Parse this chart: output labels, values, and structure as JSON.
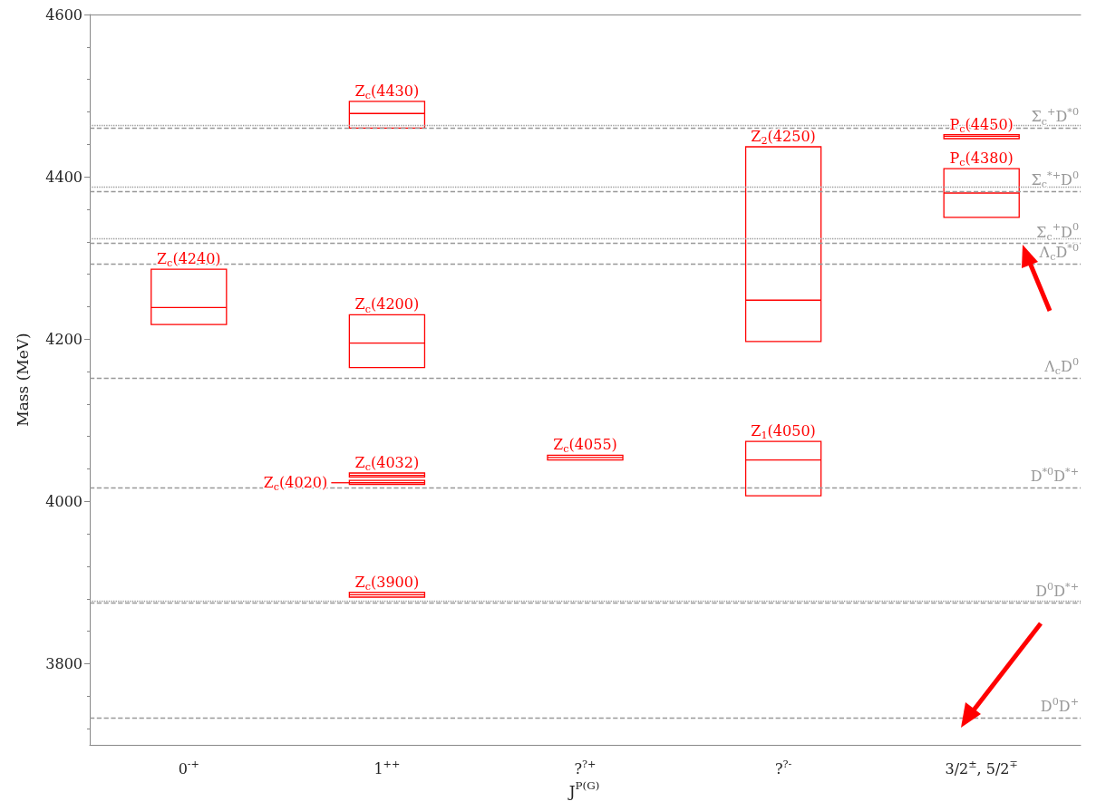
{
  "chart_data": {
    "type": "box",
    "xlabel": "J$^{P(G)}$",
    "ylabel": "Mass (MeV)",
    "categories": [
      "0$^{-+}$",
      "1$^{++}$",
      "?$^{?+}$",
      "?$^{?-}$",
      "3/2$^{±}$, 5/2$^{∓}$"
    ],
    "ylim": [
      3700,
      4600
    ],
    "yticks": [
      3800,
      4000,
      4200,
      4400,
      4600
    ],
    "grid": false,
    "series": [
      {
        "name": "Z$_{c}$(4240)",
        "color": "#ff0000",
        "boxes": [
          {
            "low": 4218,
            "q1": 4218,
            "median": 4239,
            "q3": 4286,
            "high": 4286
          },
          null,
          null,
          null,
          null
        ]
      },
      {
        "name": "Z$_{c}$(4430)",
        "color": "#ff0000",
        "boxes": [
          null,
          {
            "low": 4460,
            "q1": 4460,
            "median": 4478,
            "q3": 4493,
            "high": 4493
          },
          null,
          null,
          null
        ]
      },
      {
        "name": "Z$_{c}$(4200)",
        "color": "#ff0000",
        "boxes": [
          null,
          {
            "low": 4165,
            "q1": 4165,
            "median": 4195,
            "q3": 4230,
            "high": 4230
          },
          null,
          null,
          null
        ]
      },
      {
        "name": "Z$_{c}$(4032)",
        "color": "#ff0000",
        "boxes": [
          null,
          {
            "low": 4030,
            "q1": 4030,
            "median": 4032,
            "q3": 4035,
            "high": 4035
          },
          null,
          null,
          null
        ]
      },
      {
        "name": "Z$_{c}$(4020)",
        "color": "#ff0000",
        "boxes": [
          null,
          {
            "low": 4021,
            "q1": 4021,
            "median": 4023,
            "q3": 4026,
            "high": 4026
          },
          null,
          null,
          null
        ]
      },
      {
        "name": "Z$_{c}$(3900)",
        "color": "#ff0000",
        "boxes": [
          null,
          {
            "low": 3882,
            "q1": 3882,
            "median": 3885,
            "q3": 3888,
            "high": 3888
          },
          null,
          null,
          null
        ]
      },
      {
        "name": "Z$_{c}$(4055)",
        "color": "#ff0000",
        "boxes": [
          null,
          null,
          {
            "low": 4051,
            "q1": 4051,
            "median": 4054,
            "q3": 4057,
            "high": 4057
          },
          null,
          null
        ]
      },
      {
        "name": "Z$_{2}$(4250)",
        "color": "#ff0000",
        "boxes": [
          null,
          null,
          null,
          {
            "low": 4197,
            "q1": 4197,
            "median": 4248,
            "q3": 4437,
            "high": 4437
          },
          null
        ]
      },
      {
        "name": "Z$_{1}$(4050)",
        "color": "#ff0000",
        "boxes": [
          null,
          null,
          null,
          {
            "low": 4007,
            "q1": 4007,
            "median": 4051,
            "q3": 4074,
            "high": 4074
          },
          null
        ]
      },
      {
        "name": "P$_{c}$(4450)",
        "color": "#ff0000",
        "boxes": [
          null,
          null,
          null,
          null,
          {
            "low": 4447,
            "q1": 4447,
            "median": 4450,
            "q3": 4452,
            "high": 4452
          }
        ]
      },
      {
        "name": "P$_{c}$(4380)",
        "color": "#ff0000",
        "boxes": [
          null,
          null,
          null,
          null,
          {
            "low": 4350,
            "q1": 4350,
            "median": 4380,
            "q3": 4410,
            "high": 4410
          }
        ]
      }
    ],
    "ref_lines": [
      {
        "axis": "y",
        "value": 4460,
        "label": "Σ$_{c}$$^{+}$D$^{*0}$",
        "color": "#999999",
        "line_style": "dashed"
      },
      {
        "axis": "y",
        "value": 4464,
        "label": null,
        "color": "#999999",
        "line_style": "dotted"
      },
      {
        "axis": "y",
        "value": 4382,
        "label": "Σ$_{c}$$^{*+}$D$^{0}$",
        "color": "#999999",
        "line_style": "dashed"
      },
      {
        "axis": "y",
        "value": 4388,
        "label": null,
        "color": "#999999",
        "line_style": "dotted"
      },
      {
        "axis": "y",
        "value": 4318,
        "label": "Σ$_{c}$$^{+}$D$^{0}$",
        "color": "#999999",
        "line_style": "dashed"
      },
      {
        "axis": "y",
        "value": 4324,
        "label": null,
        "color": "#999999",
        "line_style": "dotted"
      },
      {
        "axis": "y",
        "value": 4293,
        "label": "Λ$_{c}$D$^{*0}$",
        "color": "#999999",
        "line_style": "dashed"
      },
      {
        "axis": "y",
        "value": 4152,
        "label": "Λ$_{c}$D$^{0}$",
        "color": "#999999",
        "line_style": "dashed"
      },
      {
        "axis": "y",
        "value": 4017,
        "label": "D$^{*0}$D$^{*+}$",
        "color": "#999999",
        "line_style": "dashed"
      },
      {
        "axis": "y",
        "value": 3875,
        "label": "D$^{0}$D$^{*+}$",
        "color": "#999999",
        "line_style": "dashed"
      },
      {
        "axis": "y",
        "value": 3877,
        "label": null,
        "color": "#999999",
        "line_style": "dotted"
      },
      {
        "axis": "y",
        "value": 3733,
        "label": "D$^{0}$D$^{+}$",
        "color": "#999999",
        "line_style": "dashed"
      }
    ]
  }
}
